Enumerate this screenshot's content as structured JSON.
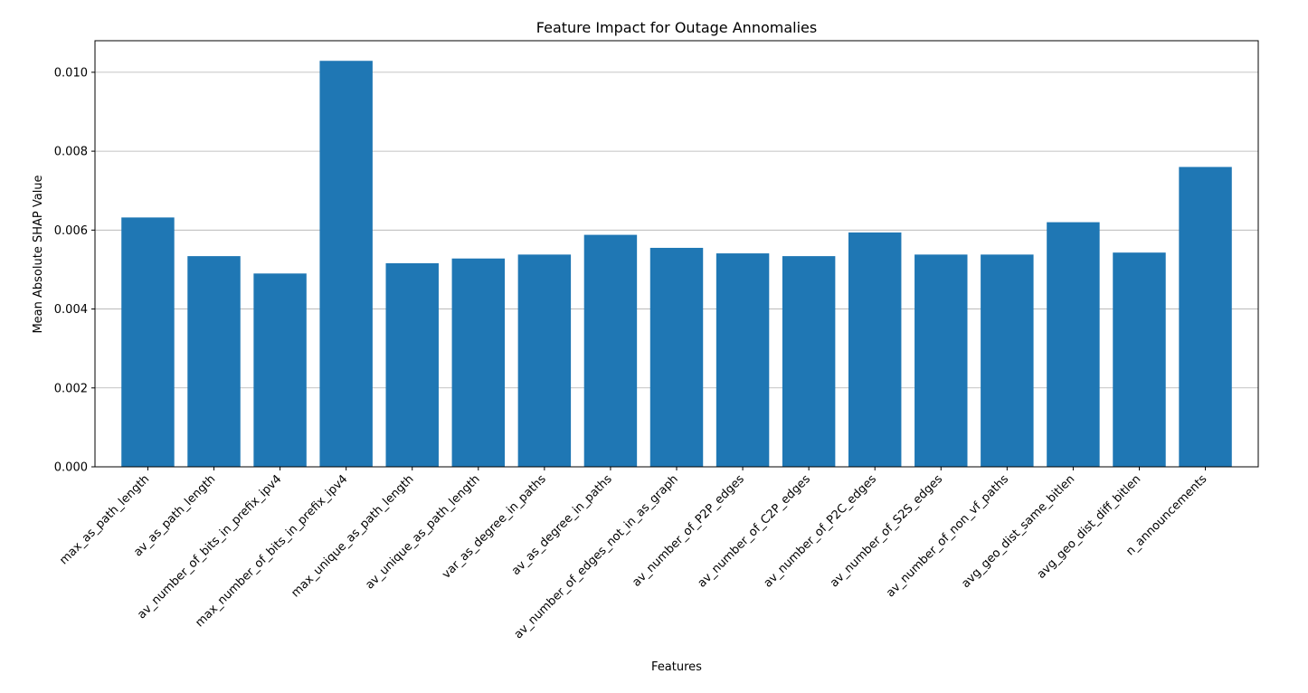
{
  "chart_data": {
    "type": "bar",
    "title": "Feature Impact for Outage Annomalies",
    "xlabel": "Features",
    "ylabel": "Mean Absolute SHAP Value",
    "categories": [
      "max_as_path_length",
      "av_as_path_length",
      "av_number_of_bits_in_prefix_ipv4",
      "max_number_of_bits_in_prefix_ipv4",
      "max_unique_as_path_length",
      "av_unique_as_path_length",
      "var_as_degree_in_paths",
      "av_as_degree_in_paths",
      "av_number_of_edges_not_in_as_graph",
      "av_number_of_P2P_edges",
      "av_number_of_C2P_edges",
      "av_number_of_P2C_edges",
      "av_number_of_S2S_edges",
      "av_number_of_non_vf_paths",
      "avg_geo_dist_same_bitlen",
      "avg_geo_dist_diff_bitlen",
      "n_announcements"
    ],
    "values": [
      0.00632,
      0.00534,
      0.0049,
      0.01029,
      0.00516,
      0.00528,
      0.00538,
      0.00588,
      0.00555,
      0.00541,
      0.00534,
      0.00594,
      0.00538,
      0.00538,
      0.0062,
      0.00543,
      0.0076
    ],
    "yticks": [
      "0.000",
      "0.002",
      "0.004",
      "0.006",
      "0.008",
      "0.010"
    ],
    "ylim": [
      0,
      0.0108
    ],
    "grid": "y",
    "bar_color": "#1f77b4",
    "legend": "none"
  }
}
